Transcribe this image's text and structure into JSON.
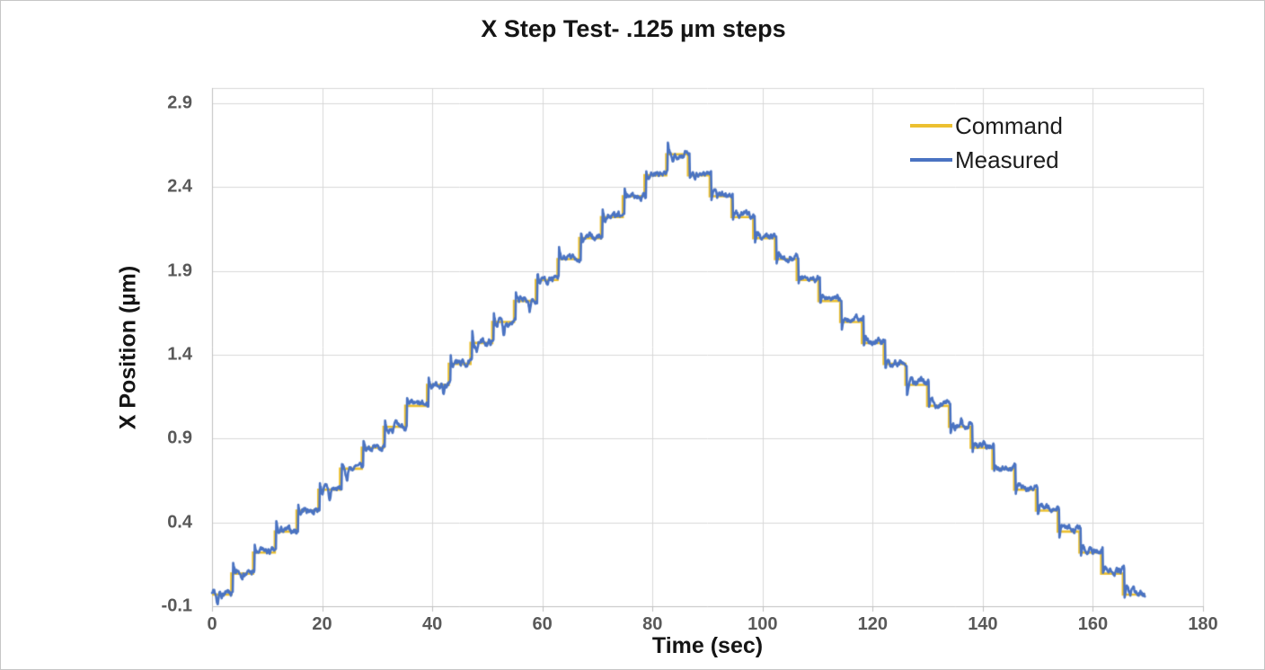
{
  "chart_data": {
    "type": "line",
    "title": "X Step Test- .125 µm steps",
    "xlabel": "Time (sec)",
    "ylabel": "X Position (µm)",
    "xlim": [
      0,
      180
    ],
    "ylim": [
      -0.1,
      2.99
    ],
    "xticks": [
      0,
      20,
      40,
      60,
      80,
      100,
      120,
      140,
      160,
      180
    ],
    "yticks": [
      -0.1,
      0.4,
      0.9,
      1.4,
      1.9,
      2.4,
      2.9
    ],
    "grid": true,
    "legend_position": "inside-top-right",
    "colors": {
      "grid": "#d8d8d8",
      "axis_line": "#bfbfbf",
      "tick_text": "#595959",
      "title_text": "#151515",
      "command": "#ecc030",
      "measured": "#4a73c2"
    },
    "step_size_um": 0.125,
    "series": [
      {
        "name": "Command",
        "color": "#ecc030",
        "type": "step",
        "start_value": -0.03,
        "end_time": 169.5,
        "step_times": [
          3.5,
          7.45,
          11.4,
          15.35,
          19.3,
          23.25,
          27.2,
          31.15,
          35.1,
          39.05,
          43.0,
          46.95,
          50.9,
          54.85,
          58.8,
          62.75,
          66.7,
          70.65,
          74.6,
          78.55,
          82.5,
          86.45,
          90.4,
          94.35,
          98.3,
          102.25,
          106.2,
          110.15,
          114.1,
          118.05,
          122.0,
          125.95,
          129.9,
          133.85,
          137.8,
          141.75,
          145.7,
          149.65,
          153.6,
          157.55,
          161.5,
          165.45
        ],
        "step_values": [
          0.095,
          0.22,
          0.345,
          0.47,
          0.595,
          0.72,
          0.845,
          0.97,
          1.095,
          1.22,
          1.345,
          1.47,
          1.595,
          1.72,
          1.845,
          1.97,
          2.095,
          2.22,
          2.345,
          2.47,
          2.595,
          2.47,
          2.345,
          2.22,
          2.095,
          1.97,
          1.845,
          1.72,
          1.595,
          1.47,
          1.345,
          1.22,
          1.095,
          0.97,
          0.845,
          0.72,
          0.595,
          0.47,
          0.345,
          0.22,
          0.095,
          -0.03
        ]
      },
      {
        "name": "Measured",
        "color": "#4a73c2",
        "type": "noisy-follow",
        "follows": "Command",
        "sample_interval": 0.08,
        "lag_sec": 0.28,
        "noise_amplitude": 0.013,
        "overshoot": 0.04,
        "osc_period": 1.1,
        "osc_decay": 0.5,
        "fall_bias": 0.013,
        "rise_bias": 0.004,
        "glitch_prob": 0.32,
        "seed": 7
      }
    ]
  }
}
